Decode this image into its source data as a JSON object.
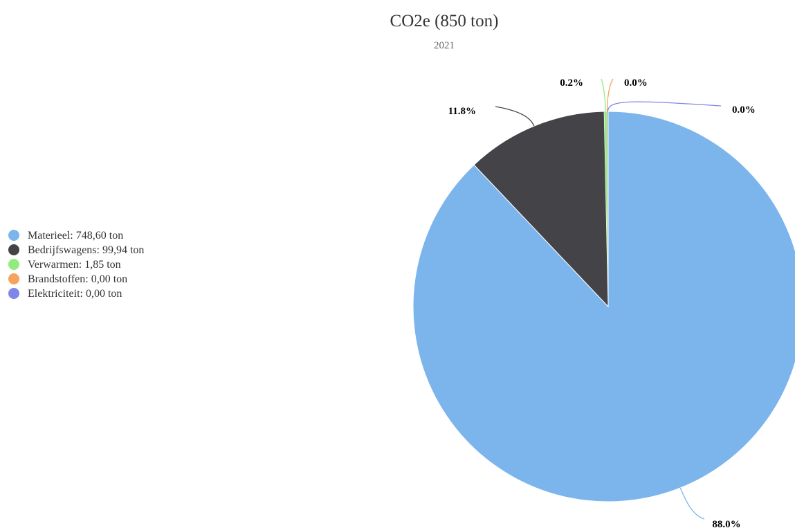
{
  "chart_data": {
    "type": "pie",
    "title": "CO2e (850 ton)",
    "subtitle": "2021",
    "legend_position": "left",
    "slices": [
      {
        "name": "Materieel",
        "legend": "Materieel: 748,60 ton",
        "value": 748.6,
        "label": "88.0%",
        "color": "#7cb5ec"
      },
      {
        "name": "Bedrijfswagens",
        "legend": "Bedrijfswagens: 99,94 ton",
        "value": 99.94,
        "label": "11.8%",
        "color": "#434348"
      },
      {
        "name": "Verwarmen",
        "legend": "Verwarmen: 1,85 ton",
        "value": 1.85,
        "label": "0.2%",
        "color": "#90ed7d"
      },
      {
        "name": "Brandstoffen",
        "legend": "Brandstoffen: 0,00 ton",
        "value": 0.0,
        "label": "0.0%",
        "color": "#f7a35c"
      },
      {
        "name": "Elektriciteit",
        "legend": "Elektriciteit: 0,00 ton",
        "value": 0.0,
        "label": "0.0%",
        "color": "#8085e9"
      }
    ]
  }
}
